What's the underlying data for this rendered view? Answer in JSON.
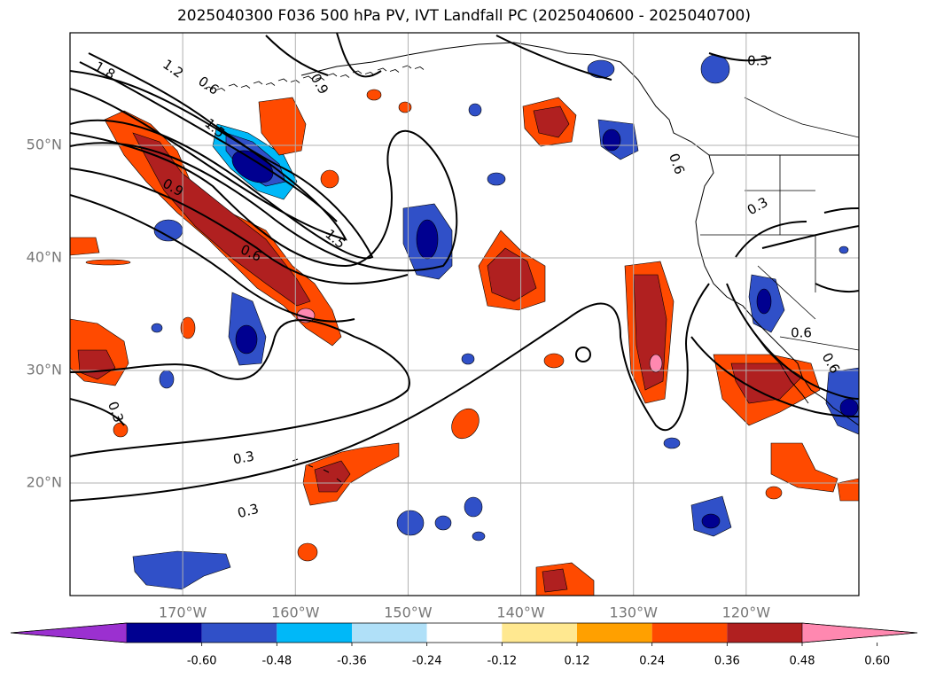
{
  "title": "2025040300 F036 500 hPa PV, IVT Landfall PC (2025040600 - 2025040700)",
  "map": {
    "projection": "PlateCarree",
    "lon_range": [
      -180,
      -110
    ],
    "lat_range": [
      10,
      60
    ],
    "lat_ticks": [
      {
        "lat": 50,
        "label": "50°N"
      },
      {
        "lat": 40,
        "label": "40°N"
      },
      {
        "lat": 30,
        "label": "30°N"
      },
      {
        "lat": 20,
        "label": "20°N"
      }
    ],
    "lon_ticks": [
      {
        "lon": -170,
        "label": "170°W"
      },
      {
        "lon": -160,
        "label": "160°W"
      },
      {
        "lon": -150,
        "label": "150°W"
      },
      {
        "lon": -140,
        "label": "140°W"
      },
      {
        "lon": -130,
        "label": "130°W"
      },
      {
        "lon": -120,
        "label": "120°W"
      }
    ],
    "grid": true,
    "contour_color": "#000000",
    "contour_labels": [
      "1.8",
      "1.2",
      "0.6",
      "0.9",
      "1.5",
      "0.9",
      "0.6",
      "1.5",
      "0.3",
      "0.3",
      "0.3",
      "0.3",
      "0.6",
      "0.3",
      "0.6",
      "0.6"
    ]
  },
  "colorbar": {
    "levels": [
      "-0.60",
      "-0.48",
      "-0.36",
      "-0.24",
      "-0.12",
      "0.12",
      "0.24",
      "0.36",
      "0.48",
      "0.60"
    ],
    "colors": [
      "#9b30d0",
      "#000090",
      "#3050c8",
      "#00b8f8",
      "#b0e0f8",
      "#ffffff",
      "#ffe890",
      "#ffa000",
      "#ff4a00",
      "#b02020",
      "#ff88b0"
    ],
    "extend": "both"
  },
  "field_colors": {
    "neg_strong": "#000090",
    "neg_mid": "#3050c8",
    "neg_weak": "#00b8f8",
    "pos_weak": "#ffe890",
    "pos_mid": "#ff4a00",
    "pos_strong": "#b02020",
    "pos_max": "#ff88b0"
  }
}
